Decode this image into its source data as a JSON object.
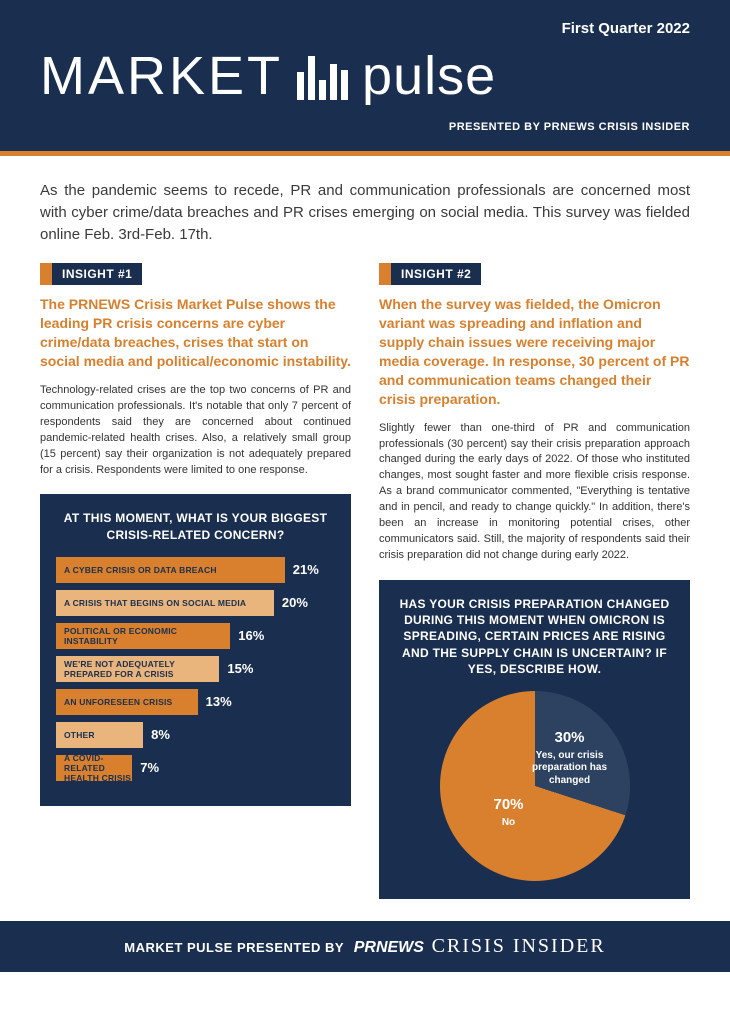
{
  "header": {
    "quarter": "First Quarter 2022",
    "logo_left": "MARKET",
    "logo_right": "pulse",
    "presented": "PRESENTED BY PRNEWS CRISIS INSIDER",
    "bg_color": "#1a2f4f",
    "accent_color": "#d8802e"
  },
  "intro": "As the pandemic seems to recede, PR and communication professionals are concerned most with cyber crime/data breaches and PR crises emerging on social media. This survey was fielded online Feb. 3rd-Feb. 17th.",
  "insight1": {
    "tag": "INSIGHT #1",
    "headline": "The PRNEWS Crisis Market Pulse shows the leading PR crisis concerns are cyber crime/data breaches, crises that start on social media and political/economic instability.",
    "body": "Technology-related crises are the top two concerns of PR and communication professionals. It's notable that only 7 percent of respondents said they are concerned about continued pandemic-related health crises. Also, a relatively small group (15 percent) say their organization is not adequately prepared for a crisis. Respondents were limited to one response."
  },
  "insight2": {
    "tag": "INSIGHT #2",
    "headline": "When the survey was fielded, the Omicron variant was spreading and inflation and supply chain issues were receiving major media coverage. In response, 30 percent of PR and communication teams changed their crisis preparation.",
    "body": "Slightly fewer than one-third of PR and communication professionals (30 percent) say their crisis preparation approach changed during the early days of 2022. Of those who instituted changes, most sought faster and more flexible crisis response. As a brand communicator commented, \"Everything is tentative and in pencil, and ready to change quickly.\" In addition, there's been an increase in monitoring potential crises, other communicators said. Still, the majority of respondents said their crisis preparation did not change during early 2022."
  },
  "bar_chart": {
    "type": "bar",
    "title": "AT THIS MOMENT, WHAT IS YOUR BIGGEST CRISIS-RELATED CONCERN?",
    "background_color": "#1a2f4f",
    "max_value": 21,
    "bar_full_width_pct": 82,
    "bars": [
      {
        "label": "A CYBER CRISIS OR DATA BREACH",
        "value": 21,
        "pct": "21%",
        "color": "#d8802e"
      },
      {
        "label": "A CRISIS THAT BEGINS ON SOCIAL MEDIA",
        "value": 20,
        "pct": "20%",
        "color": "#e9b57d"
      },
      {
        "label": "POLITICAL OR ECONOMIC INSTABILITY",
        "value": 16,
        "pct": "16%",
        "color": "#d8802e"
      },
      {
        "label": "WE'RE NOT ADEQUATELY PREPARED FOR A CRISIS",
        "value": 15,
        "pct": "15%",
        "color": "#e9b57d"
      },
      {
        "label": "AN UNFORESEEN CRISIS",
        "value": 13,
        "pct": "13%",
        "color": "#d8802e"
      },
      {
        "label": "OTHER",
        "value": 8,
        "pct": "8%",
        "color": "#e9b57d"
      },
      {
        "label": "A COVID-RELATED HEALTH CRISIS",
        "value": 7,
        "pct": "7%",
        "color": "#d8802e"
      }
    ]
  },
  "pie_chart": {
    "type": "pie",
    "title": "HAS YOUR CRISIS PREPARATION CHANGED DURING THIS MOMENT WHEN OMICRON IS SPREADING, CERTAIN PRICES ARE RISING AND THE SUPPLY CHAIN IS UNCERTAIN? IF YES, DESCRIBE HOW.",
    "background_color": "#1a2f4f",
    "slices": [
      {
        "label": "Yes, our crisis preparation has changed",
        "value": 30,
        "pct": "30%",
        "color": "#2c4260"
      },
      {
        "label": "No",
        "value": 70,
        "pct": "70%",
        "color": "#d8802e"
      }
    ]
  },
  "footer": {
    "text": "MARKET PULSE PRESENTED BY",
    "brand1": "PRNEWS",
    "brand2": "CRISIS INSIDER"
  }
}
